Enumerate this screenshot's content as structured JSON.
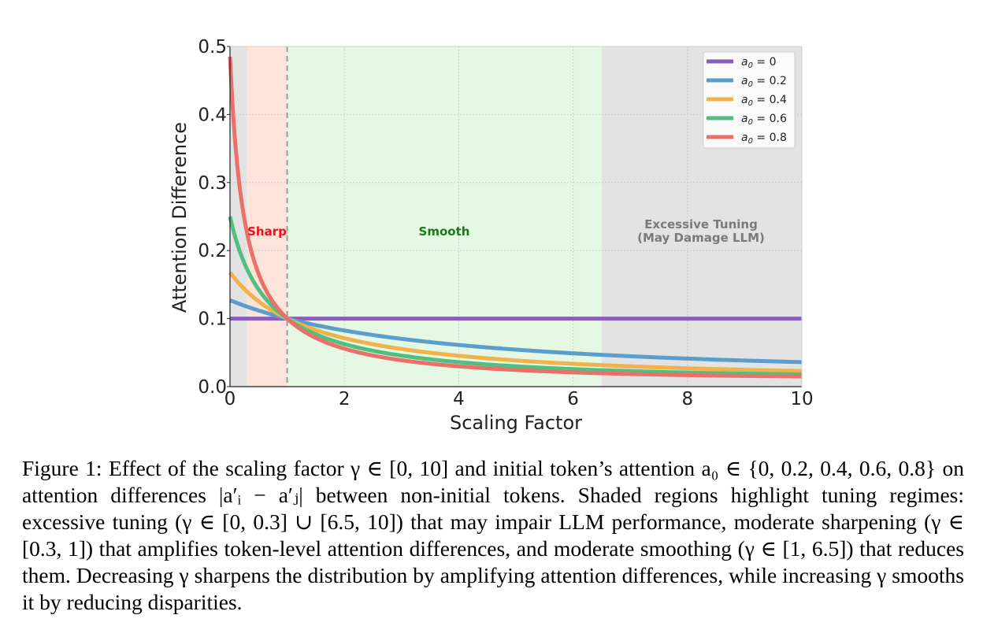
{
  "chart_data": {
    "type": "line",
    "xlabel": "Scaling Factor",
    "ylabel": "Attention Difference",
    "xlim": [
      0,
      10
    ],
    "ylim": [
      0,
      0.5
    ],
    "xticks": [
      "0",
      "2",
      "4",
      "6",
      "8",
      "10"
    ],
    "yticks": [
      "0.0",
      "0.1",
      "0.2",
      "0.3",
      "0.4",
      "0.5"
    ],
    "grid": true,
    "legend_position": "top-right",
    "regions": [
      {
        "name": "excessive-low",
        "range": [
          0,
          0.3
        ],
        "color": "#e3e3e3",
        "label": ""
      },
      {
        "name": "sharp",
        "range": [
          0.3,
          1
        ],
        "color": "#fde3da",
        "label": "Sharp",
        "label_color": "#e8141a"
      },
      {
        "name": "smooth",
        "range": [
          1,
          6.5
        ],
        "color": "#e4f8e4",
        "label": "Smooth",
        "label_color": "#1a7a1a"
      },
      {
        "name": "excessive-high",
        "range": [
          6.5,
          10
        ],
        "color": "#e3e3e3",
        "label_line1": "Excessive Tuning",
        "label_line2": "(May Damage LLM)",
        "label_color": "#7a7a7a"
      }
    ],
    "vline_x": 1,
    "series": [
      {
        "name": "a0 = 0",
        "a0": 0,
        "color": "#8a5fb8",
        "legend_prefix": "a",
        "legend_sub": "0",
        "legend_suffix": " = 0"
      },
      {
        "name": "a0 = 0.2",
        "a0": 0.2,
        "color": "#5b9ecb",
        "legend_prefix": "a",
        "legend_sub": "0",
        "legend_suffix": " = 0.2"
      },
      {
        "name": "a0 = 0.4",
        "a0": 0.4,
        "color": "#f0b24a",
        "legend_prefix": "a",
        "legend_sub": "0",
        "legend_suffix": " = 0.4"
      },
      {
        "name": "a0 = 0.6",
        "a0": 0.6,
        "color": "#52be7f",
        "legend_prefix": "a",
        "legend_sub": "0",
        "legend_suffix": " = 0.6"
      },
      {
        "name": "a0 = 0.8",
        "a0": 0.8,
        "color": "#ea7069",
        "legend_prefix": "a",
        "legend_sub": "0",
        "legend_suffix": " = 0.8"
      }
    ]
  },
  "caption": {
    "text": "Figure 1:  Effect of the scaling factor γ ∈ [0, 10] and initial token’s attention a₀ ∈ {0, 0.2, 0.4, 0.6, 0.8} on attention differences |a′ᵢ − a′ⱼ| between non-initial tokens. Shaded regions highlight tuning regimes: excessive tuning (γ ∈ [0, 0.3] ∪ [6.5, 10]) that may impair LLM performance, moderate sharpening (γ ∈ [0.3, 1]) that amplifies token-level attention differences, and moderate smoothing (γ ∈ [1, 6.5]) that reduces them. Decreasing γ sharpens the distribution by amplifying attention differences, while increasing γ smooths it by reducing disparities."
  }
}
